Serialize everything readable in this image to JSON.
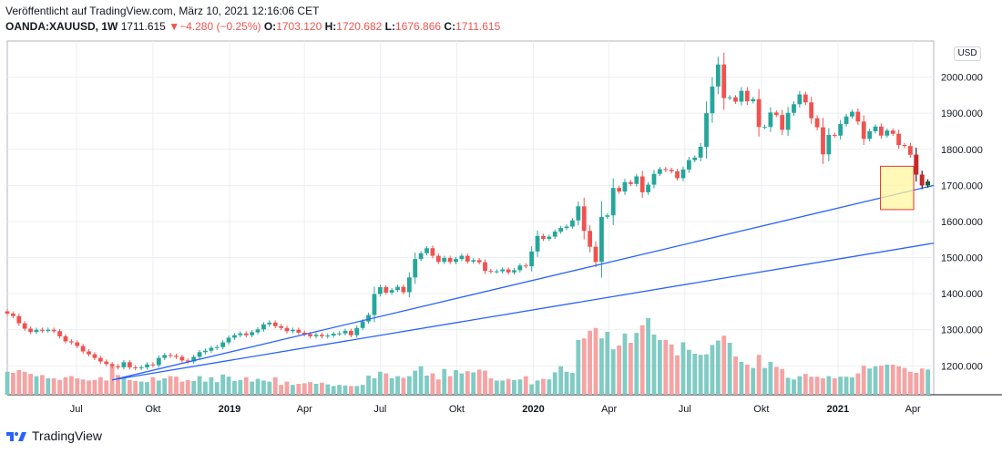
{
  "header": {
    "published": "Veröffentlicht auf TradingView.com, März 10, 2021 12:16:06 CET",
    "symbol": "OANDA:XAUUSD, 1W",
    "last": "1711.615",
    "change_arrow": "▼",
    "change": "−4.280 (−0.25%)",
    "open_label": "O:",
    "open": "1703.120",
    "high_label": "H:",
    "high": "1720.682",
    "low_label": "L:",
    "low": "1676.866",
    "close_label": "C:",
    "close": "1711.615"
  },
  "footer": {
    "brand": "TradingView"
  },
  "colors": {
    "up": "#26a69a",
    "down": "#ef5350",
    "up_volume": "#80cbc4",
    "down_volume": "#f5a3a3",
    "trendline": "#2962ff",
    "highlight_fill": "#fff59d",
    "highlight_border": "#e53935",
    "grid": "#eceff3"
  },
  "chart_data": {
    "type": "candlestick",
    "interval": "1W",
    "unit": "USD",
    "ylim": [
      1120,
      2100
    ],
    "xlim": [
      "2018-04-09",
      "2021-04-26"
    ],
    "y_ticks": [
      "1200.000",
      "1300.000",
      "1400.000",
      "1500.000",
      "1600.000",
      "1700.000",
      "1800.000",
      "1900.000",
      "2000.000"
    ],
    "x_ticks": [
      {
        "date": "2018-07-01",
        "label": "Jul"
      },
      {
        "date": "2018-10-01",
        "label": "Okt"
      },
      {
        "date": "2019-01-01",
        "label": "2019"
      },
      {
        "date": "2019-04-01",
        "label": "Apr"
      },
      {
        "date": "2019-07-01",
        "label": "Jul"
      },
      {
        "date": "2019-10-01",
        "label": "Okt"
      },
      {
        "date": "2020-01-01",
        "label": "2020"
      },
      {
        "date": "2020-04-01",
        "label": "Apr"
      },
      {
        "date": "2020-07-01",
        "label": "Jul"
      },
      {
        "date": "2020-10-01",
        "label": "Okt"
      },
      {
        "date": "2021-01-01",
        "label": "2021"
      },
      {
        "date": "2021-04-01",
        "label": "Apr"
      }
    ],
    "first_week": "2018-04-09",
    "close": [
      1345,
      1338,
      1318,
      1303,
      1294,
      1300,
      1297,
      1300,
      1296,
      1282,
      1268,
      1265,
      1255,
      1240,
      1232,
      1222,
      1212,
      1205,
      1199,
      1196,
      1210,
      1196,
      1194,
      1196,
      1204,
      1202,
      1222,
      1230,
      1228,
      1225,
      1215,
      1212,
      1225,
      1238,
      1242,
      1250,
      1252,
      1265,
      1278,
      1285,
      1290,
      1285,
      1293,
      1301,
      1315,
      1320,
      1310,
      1305,
      1296,
      1300,
      1292,
      1288,
      1282,
      1286,
      1282,
      1284,
      1289,
      1290,
      1297,
      1285,
      1305,
      1323,
      1341,
      1399,
      1418,
      1403,
      1410,
      1419,
      1404,
      1445,
      1496,
      1512,
      1526,
      1505,
      1488,
      1499,
      1488,
      1496,
      1505,
      1489,
      1493,
      1487,
      1463,
      1462,
      1462,
      1467,
      1459,
      1465,
      1478,
      1476,
      1517,
      1560,
      1552,
      1558,
      1572,
      1582,
      1586,
      1603,
      1642,
      1574,
      1530,
      1488,
      1613,
      1617,
      1693,
      1683,
      1709,
      1704,
      1725,
      1681,
      1702,
      1732,
      1745,
      1743,
      1739,
      1720,
      1744,
      1770,
      1777,
      1807,
      1900,
      1974,
      2035,
      1942,
      1944,
      1932,
      1962,
      1933,
      1939,
      1862,
      1862,
      1902,
      1895,
      1854,
      1901,
      1925,
      1952,
      1930,
      1886,
      1861,
      1786,
      1840,
      1838,
      1870,
      1891,
      1904,
      1877,
      1829,
      1850,
      1863,
      1838,
      1852,
      1843,
      1812,
      1809,
      1785,
      1730,
      1700,
      1711
    ],
    "volume_rel": [
      0.42,
      0.4,
      0.45,
      0.42,
      0.38,
      0.34,
      0.36,
      0.3,
      0.3,
      0.27,
      0.32,
      0.34,
      0.3,
      0.28,
      0.26,
      0.27,
      0.32,
      0.26,
      0.52,
      0.36,
      0.3,
      0.27,
      0.25,
      0.24,
      0.23,
      0.32,
      0.26,
      0.3,
      0.34,
      0.33,
      0.24,
      0.27,
      0.25,
      0.34,
      0.24,
      0.32,
      0.23,
      0.37,
      0.33,
      0.25,
      0.27,
      0.32,
      0.24,
      0.29,
      0.26,
      0.24,
      0.32,
      0.18,
      0.24,
      0.18,
      0.2,
      0.21,
      0.23,
      0.2,
      0.22,
      0.19,
      0.16,
      0.18,
      0.17,
      0.16,
      0.16,
      0.18,
      0.35,
      0.3,
      0.42,
      0.39,
      0.3,
      0.34,
      0.31,
      0.34,
      0.44,
      0.52,
      0.35,
      0.39,
      0.28,
      0.47,
      0.34,
      0.45,
      0.39,
      0.43,
      0.41,
      0.46,
      0.44,
      0.3,
      0.26,
      0.26,
      0.29,
      0.27,
      0.28,
      0.34,
      0.19,
      0.26,
      0.29,
      0.28,
      0.41,
      0.52,
      0.42,
      0.4,
      1.0,
      1.03,
      1.17,
      1.22,
      1.03,
      1.15,
      0.83,
      0.9,
      1.12,
      0.95,
      1.13,
      1.27,
      1.4,
      1.1,
      1.0,
      1.0,
      0.92,
      0.72,
      0.96,
      0.82,
      0.75,
      0.73,
      0.74,
      0.91,
      0.99,
      1.08,
      0.95,
      0.7,
      0.6,
      0.55,
      0.49,
      0.73,
      0.49,
      0.6,
      0.51,
      0.47,
      0.31,
      0.28,
      0.34,
      0.38,
      0.33,
      0.33,
      0.3,
      0.34,
      0.3,
      0.33,
      0.33,
      0.32,
      0.39,
      0.53,
      0.48,
      0.52,
      0.53,
      0.55,
      0.55,
      0.52,
      0.49,
      0.42,
      0.4,
      0.48,
      0.46,
      0.5,
      0.44,
      0.73,
      0.68,
      0.43
    ],
    "trendlines": [
      {
        "from": {
          "date": "2018-08-13",
          "price": 1161
        },
        "to": {
          "date": "2021-04-26",
          "price": 1700
        }
      },
      {
        "from": {
          "date": "2018-08-13",
          "price": 1161
        },
        "to": {
          "date": "2021-04-26",
          "price": 1540
        }
      }
    ],
    "highlight_box": {
      "from_date": "2021-02-21",
      "to_date": "2021-04-02",
      "price_low": 1633,
      "price_high": 1753
    }
  }
}
